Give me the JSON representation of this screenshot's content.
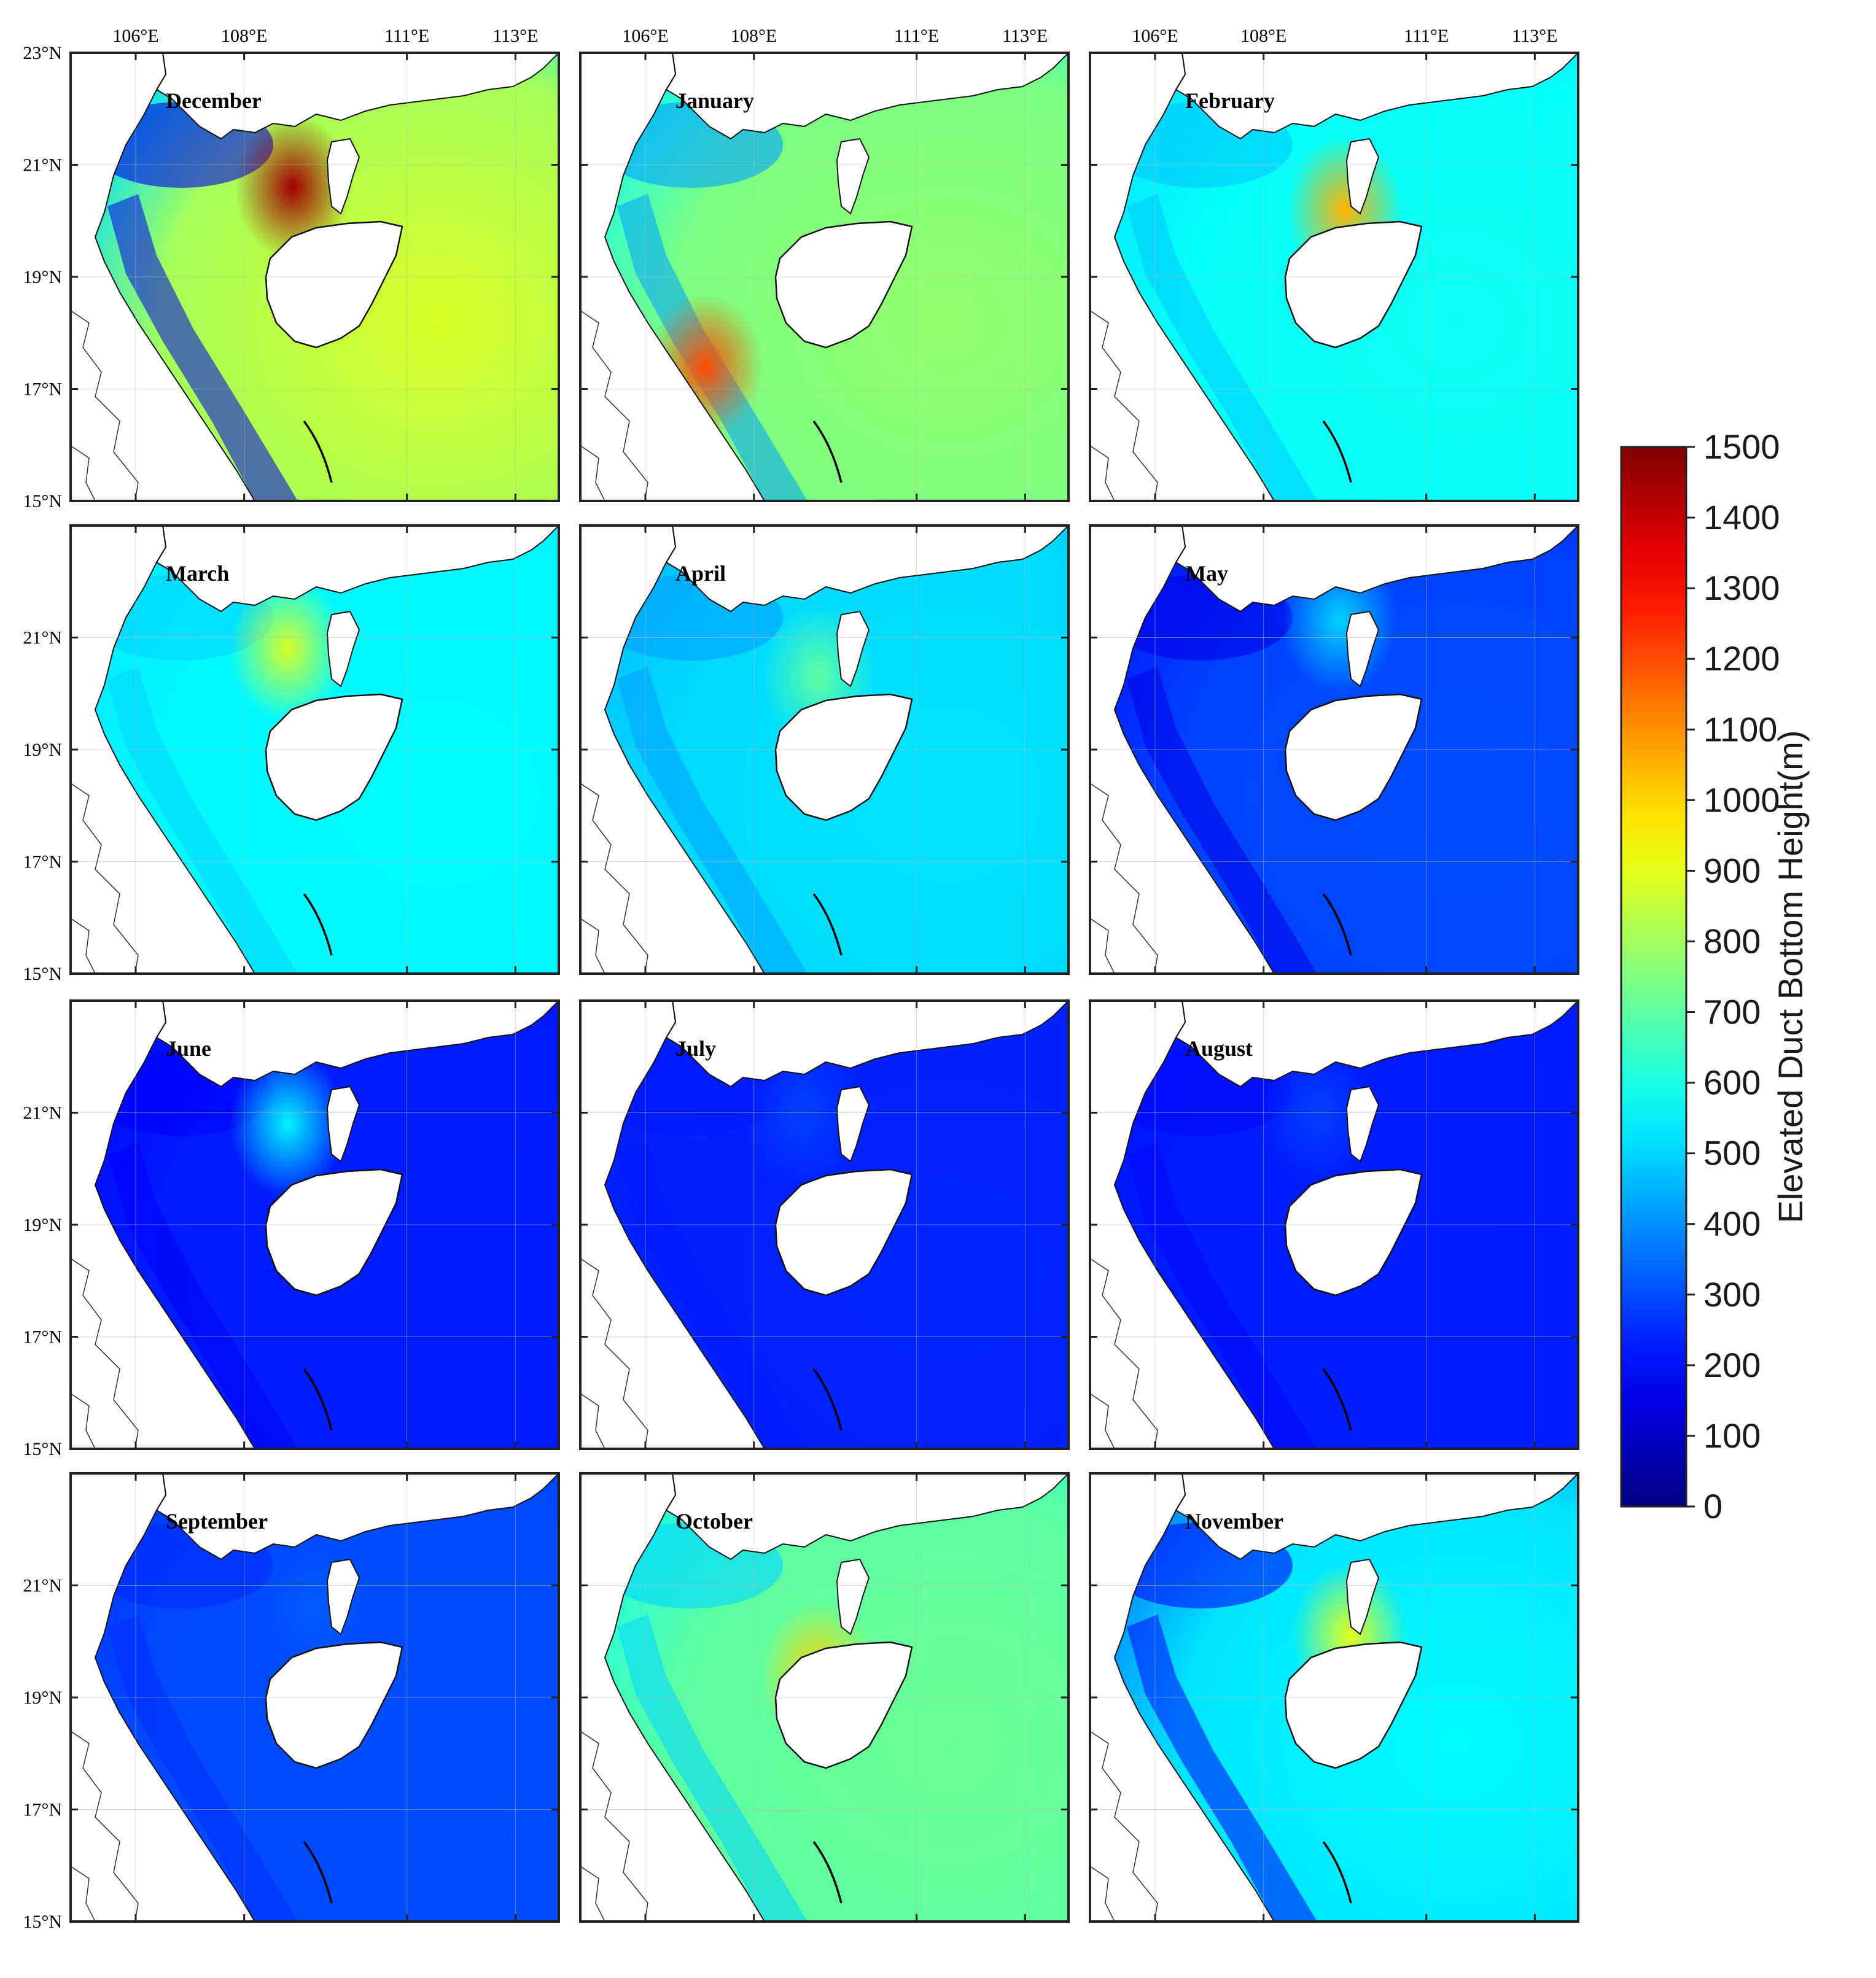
{
  "figure": {
    "colorbar": {
      "title": "Elevated Duct Bottom Height(m)",
      "ticks": [
        "0",
        "100",
        "200",
        "300",
        "400",
        "500",
        "600",
        "700",
        "800",
        "900",
        "1000",
        "1100",
        "1200",
        "1300",
        "1400",
        "1500"
      ],
      "range": [
        0,
        1500
      ],
      "colormap": "jet"
    },
    "axes": {
      "lon_ticks": [
        "106°E",
        "108°E",
        "111°E",
        "113°E"
      ],
      "lat_ticks": [
        "23°N",
        "21°N",
        "19°N",
        "17°N",
        "15°N"
      ],
      "lon_values": [
        106,
        108,
        111,
        113
      ],
      "lat_values": [
        23,
        21,
        19,
        17,
        15
      ],
      "lon_range": [
        104.8,
        113.8
      ],
      "lat_range": [
        15,
        23
      ]
    },
    "panels": [
      {
        "month": "December",
        "base_value": 880,
        "hotspot_value": 1450,
        "north_coast_value": 150
      },
      {
        "month": "January",
        "base_value": 780,
        "hotspot_value": 1200,
        "north_coast_value": 420
      },
      {
        "month": "February",
        "base_value": 580,
        "hotspot_value": 1050,
        "north_coast_value": 480
      },
      {
        "month": "March",
        "base_value": 560,
        "hotspot_value": 880,
        "north_coast_value": 500
      },
      {
        "month": "April",
        "base_value": 520,
        "hotspot_value": 700,
        "north_coast_value": 420
      },
      {
        "month": "May",
        "base_value": 300,
        "hotspot_value": 500,
        "north_coast_value": 150
      },
      {
        "month": "June",
        "base_value": 230,
        "hotspot_value": 550,
        "north_coast_value": 180
      },
      {
        "month": "July",
        "base_value": 240,
        "hotspot_value": 280,
        "north_coast_value": 220
      },
      {
        "month": "August",
        "base_value": 230,
        "hotspot_value": 280,
        "north_coast_value": 200
      },
      {
        "month": "September",
        "base_value": 300,
        "hotspot_value": 320,
        "north_coast_value": 250
      },
      {
        "month": "October",
        "base_value": 720,
        "hotspot_value": 1000,
        "north_coast_value": 500
      },
      {
        "month": "November",
        "base_value": 560,
        "hotspot_value": 900,
        "north_coast_value": 200
      }
    ]
  }
}
